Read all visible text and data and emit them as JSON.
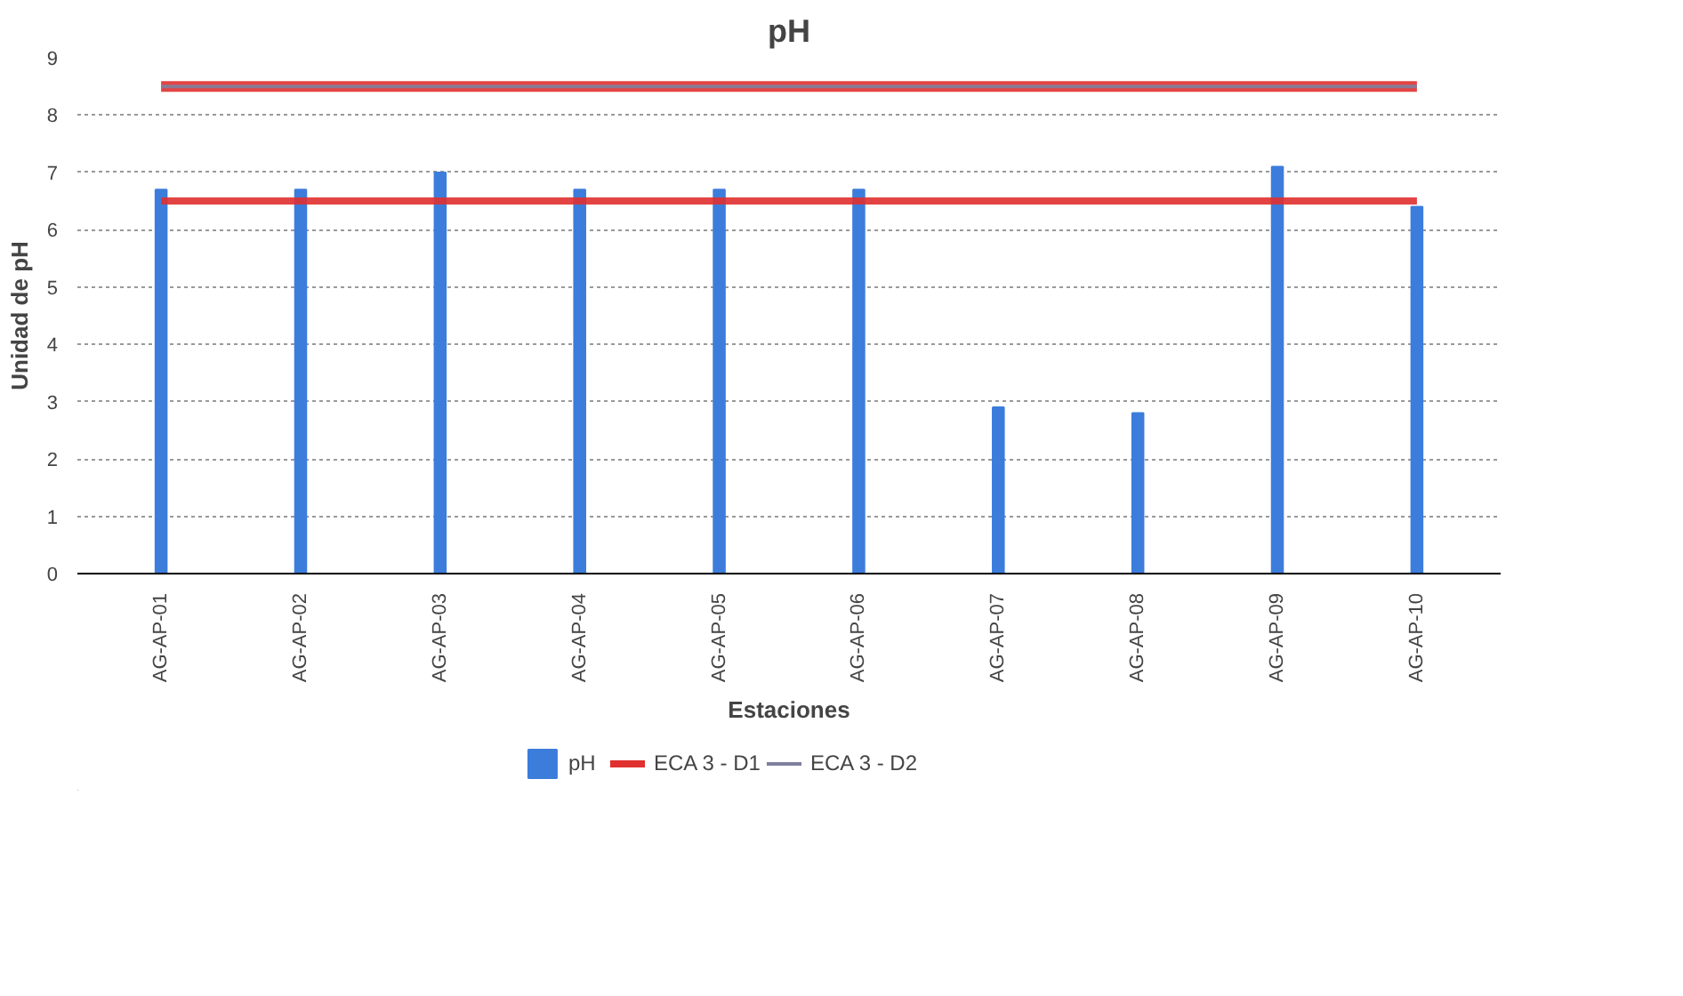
{
  "chart_data": {
    "type": "bar",
    "title": "pH",
    "xlabel": "Estaciones",
    "ylabel": "Unidad de pH",
    "categories": [
      "AG-AP-01",
      "AG-AP-02",
      "AG-AP-03",
      "AG-AP-04",
      "AG-AP-05",
      "AG-AP-06",
      "AG-AP-07",
      "AG-AP-08",
      "AG-AP-09",
      "AG-AP-10"
    ],
    "series": [
      {
        "name": "pH",
        "color": "#3c7ddc",
        "values": [
          6.7,
          6.7,
          7.0,
          6.7,
          6.7,
          6.7,
          2.9,
          2.8,
          7.1,
          6.4
        ]
      },
      {
        "name": "ECA 3 - D1",
        "type": "line",
        "color": "#e0302f",
        "values": [
          6.5,
          6.5,
          6.5,
          6.5,
          6.5,
          6.5,
          6.5,
          6.5,
          6.5,
          6.5
        ]
      },
      {
        "type": "line",
        "color": "#e0302f",
        "values": [
          8.5,
          8.5,
          8.5,
          8.5,
          8.5,
          8.5,
          8.5,
          8.5,
          8.5,
          8.5
        ]
      },
      {
        "name": "ECA 3 - D2",
        "type": "line",
        "color": "#7f7f9f",
        "values": [
          8.5,
          8.5,
          8.5,
          8.5,
          8.5,
          8.5,
          8.5,
          8.5,
          8.5,
          8.5
        ]
      }
    ],
    "ylim": [
      0,
      9
    ],
    "yticks": [
      0,
      1,
      2,
      3,
      4,
      5,
      6,
      7,
      8,
      9
    ],
    "grid": "y",
    "legend": "bottom"
  }
}
